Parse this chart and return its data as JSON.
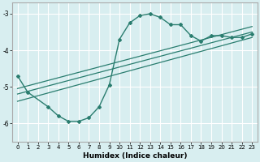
{
  "title": "",
  "xlabel": "Humidex (Indice chaleur)",
  "bg_color": "#d8eef0",
  "grid_color": "#ffffff",
  "line_color": "#2a7d6f",
  "xlim": [
    -0.5,
    23.5
  ],
  "ylim": [
    -6.5,
    -2.7
  ],
  "yticks": [
    -6,
    -5,
    -4,
    -3
  ],
  "xticks": [
    0,
    1,
    2,
    3,
    4,
    5,
    6,
    7,
    8,
    9,
    10,
    11,
    12,
    13,
    14,
    15,
    16,
    17,
    18,
    19,
    20,
    21,
    22,
    23
  ],
  "curve_x": [
    0,
    1,
    3,
    4,
    5,
    6,
    7,
    8,
    9,
    10,
    11,
    12,
    13,
    14,
    15,
    16,
    17,
    18,
    19,
    20,
    21,
    22,
    23
  ],
  "curve_y": [
    -4.7,
    -5.15,
    -5.55,
    -5.8,
    -5.95,
    -5.95,
    -5.85,
    -5.55,
    -4.95,
    -3.7,
    -3.25,
    -3.05,
    -3.0,
    -3.1,
    -3.3,
    -3.3,
    -3.6,
    -3.75,
    -3.6,
    -3.6,
    -3.65,
    -3.65,
    -3.55
  ],
  "line1_x": [
    0,
    23
  ],
  "line1_y": [
    -5.05,
    -3.35
  ],
  "line2_x": [
    0,
    23
  ],
  "line2_y": [
    -5.2,
    -3.5
  ],
  "line3_x": [
    0,
    23
  ],
  "line3_y": [
    -5.4,
    -3.65
  ],
  "spine_color": "#aaaaaa",
  "tick_fontsize": 5.0,
  "xlabel_fontsize": 6.5
}
